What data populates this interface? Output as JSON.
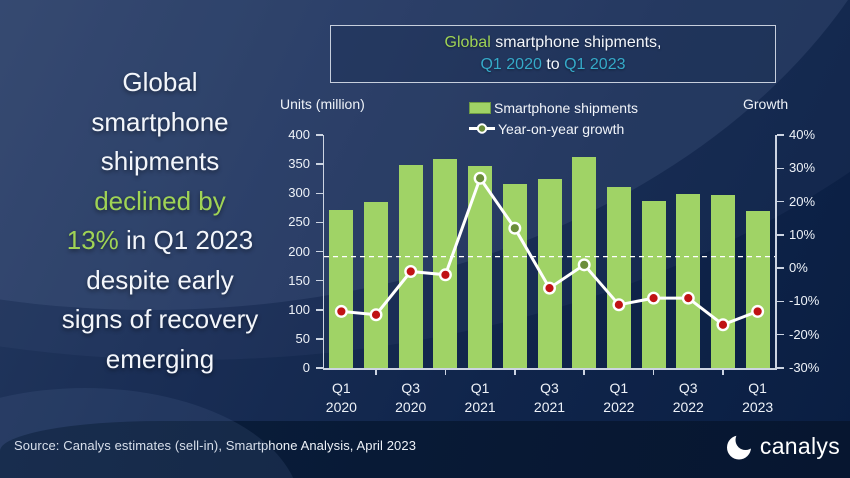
{
  "colors": {
    "white": "#f3f6fb",
    "green": "#9fd355",
    "cyan": "#35aac9",
    "bar_green": "#a0d366",
    "marker_red": "#c01214",
    "marker_olive": "#6b8e3a",
    "axis_line": "#ccd4e2"
  },
  "headline": {
    "lines": [
      [
        {
          "t": "Global",
          "c": "white"
        }
      ],
      [
        {
          "t": "smartphone",
          "c": "white"
        }
      ],
      [
        {
          "t": "shipments",
          "c": "white"
        }
      ],
      [
        {
          "t": "declined by",
          "c": "green"
        }
      ],
      [
        {
          "t": "13%",
          "c": "green"
        },
        {
          "t": " in Q1 2023",
          "c": "white"
        }
      ],
      [
        {
          "t": "despite early",
          "c": "white"
        }
      ],
      [
        {
          "t": "signs of recovery",
          "c": "white"
        }
      ],
      [
        {
          "t": "emerging",
          "c": "white"
        }
      ]
    ]
  },
  "title_box": {
    "lines": [
      [
        {
          "t": "Global",
          "c": "green"
        },
        {
          "t": " smartphone shipments,",
          "c": "white"
        }
      ],
      [
        {
          "t": "Q1 2020",
          "c": "cyan"
        },
        {
          "t": " to ",
          "c": "white"
        },
        {
          "t": "Q1 2023",
          "c": "cyan"
        }
      ]
    ]
  },
  "chart_data": {
    "type": "bar",
    "subtype": "bar-plus-line",
    "title": "Global smartphone shipments, Q1 2020 to Q1 2023",
    "categories": [
      "Q1 2020",
      "Q2 2020",
      "Q3 2020",
      "Q4 2020",
      "Q1 2021",
      "Q2 2021",
      "Q3 2021",
      "Q4 2021",
      "Q1 2022",
      "Q2 2022",
      "Q3 2022",
      "Q4 2022",
      "Q1 2023"
    ],
    "series": [
      {
        "name": "Smartphone shipments",
        "type": "bar",
        "unit": "million units",
        "color": "#a0d366",
        "values": [
          272,
          285,
          348,
          359,
          347,
          316,
          325,
          363,
          311,
          287,
          298,
          297,
          270
        ]
      },
      {
        "name": "Year-on-year growth",
        "type": "line",
        "unit": "%",
        "line_color": "#ffffff",
        "marker_positive_color": "#6b8e3a",
        "marker_negative_color": "#c01214",
        "values": [
          -13,
          -14,
          -1,
          -2,
          27,
          12,
          -6,
          1,
          -11,
          -9,
          -9,
          -17,
          -13
        ]
      }
    ],
    "left_axis": {
      "label": "Units (million)",
      "min": 0,
      "max": 400,
      "step": 50
    },
    "right_axis": {
      "label": "Growth",
      "min": -30,
      "max": 40,
      "step": 10,
      "suffix": "%"
    },
    "x_ticks": [
      {
        "slot": 0,
        "line1": "Q1",
        "line2": "2020"
      },
      {
        "slot": 2,
        "line1": "Q3",
        "line2": "2020"
      },
      {
        "slot": 4,
        "line1": "Q1",
        "line2": "2021"
      },
      {
        "slot": 6,
        "line1": "Q3",
        "line2": "2021"
      },
      {
        "slot": 8,
        "line1": "Q1",
        "line2": "2022"
      },
      {
        "slot": 10,
        "line1": "Q3",
        "line2": "2022"
      },
      {
        "slot": 12,
        "line1": "Q1",
        "line2": "2023"
      }
    ],
    "zero_line_fraction_from_bottom": 0.478,
    "legend_position": "top-center",
    "grid": "off"
  },
  "footer": {
    "source": "Source: Canalys estimates (sell-in), Smartphone Analysis, April 2023",
    "logo_text": "canalys"
  }
}
